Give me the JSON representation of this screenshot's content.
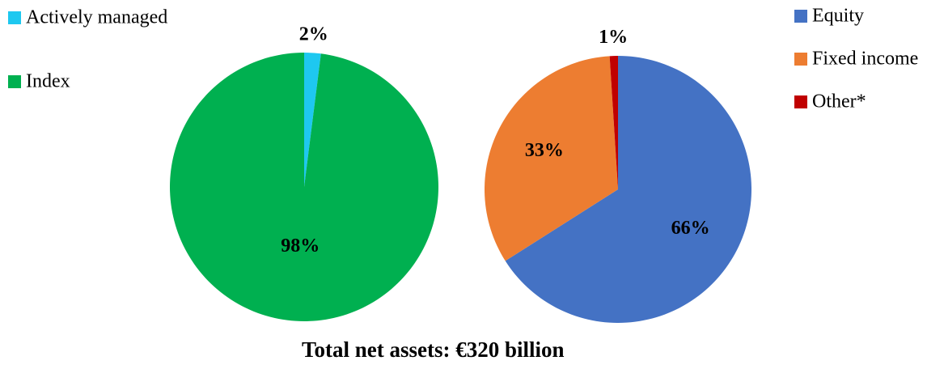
{
  "chart_data": [
    {
      "type": "pie",
      "categories": [
        "Actively managed",
        "Index"
      ],
      "values": [
        2,
        98
      ],
      "value_labels": [
        "2%",
        "98%"
      ],
      "colors": [
        "#1ec8f0",
        "#00b050"
      ],
      "legend": "upper left"
    },
    {
      "type": "pie",
      "categories": [
        "Equity",
        "Fixed income",
        "Other*"
      ],
      "values": [
        66,
        33,
        1
      ],
      "value_labels": [
        "66%",
        "33%",
        "1%"
      ],
      "colors": [
        "#4472c4",
        "#ed7d31",
        "#c00000"
      ],
      "legend": "upper right"
    }
  ],
  "footer": "Total net assets: €320 billion"
}
